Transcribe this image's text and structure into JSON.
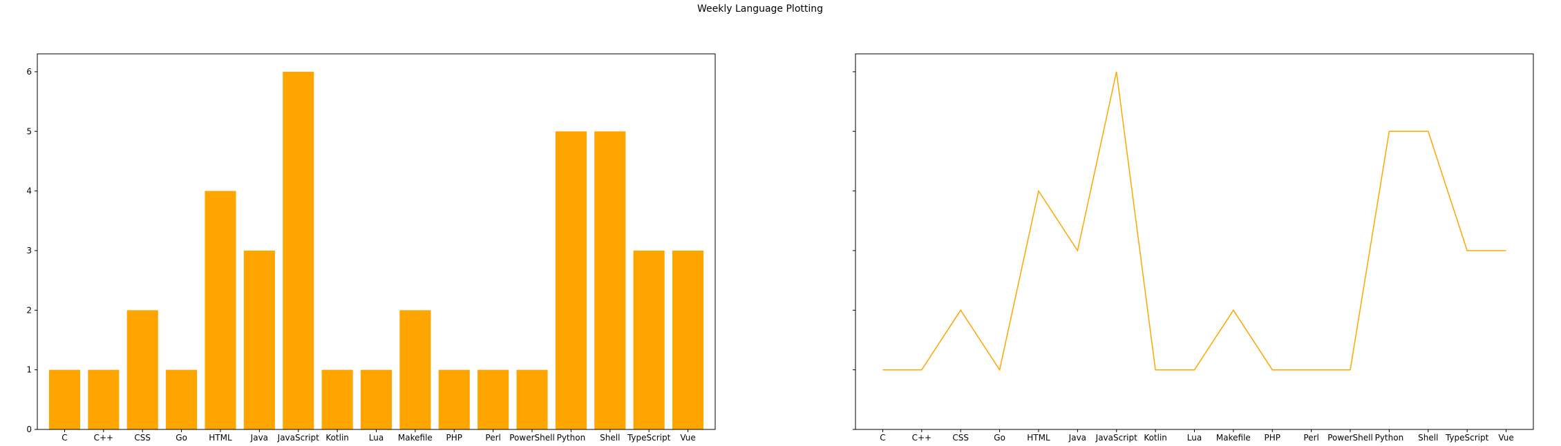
{
  "figure": {
    "title": "Weekly Language Plotting",
    "bar_color": "#ffa500",
    "line_color": "#ffa500"
  },
  "chart_data": [
    {
      "type": "bar",
      "title": "",
      "xlabel": "",
      "ylabel": "",
      "categories": [
        "C",
        "C++",
        "CSS",
        "Go",
        "HTML",
        "Java",
        "JavaScript",
        "Kotlin",
        "Lua",
        "Makefile",
        "PHP",
        "Perl",
        "PowerShell",
        "Python",
        "Shell",
        "TypeScript",
        "Vue"
      ],
      "values": [
        1,
        1,
        2,
        1,
        4,
        3,
        6,
        1,
        1,
        2,
        1,
        1,
        1,
        5,
        5,
        3,
        3
      ],
      "ylim": [
        0,
        6.3
      ],
      "yticks": [
        0,
        1,
        2,
        3,
        4,
        5,
        6
      ],
      "grid": false,
      "legend": "none"
    },
    {
      "type": "line",
      "title": "",
      "xlabel": "",
      "ylabel": "",
      "categories": [
        "C",
        "C++",
        "CSS",
        "Go",
        "HTML",
        "Java",
        "JavaScript",
        "Kotlin",
        "Lua",
        "Makefile",
        "PHP",
        "Perl",
        "PowerShell",
        "Python",
        "Shell",
        "TypeScript",
        "Vue"
      ],
      "values": [
        1,
        1,
        2,
        1,
        4,
        3,
        6,
        1,
        1,
        2,
        1,
        1,
        1,
        5,
        5,
        3,
        3
      ],
      "ylim": [
        0,
        6.3
      ],
      "yticks": [
        0,
        1,
        2,
        3,
        4,
        5,
        6
      ],
      "shared_y": true,
      "grid": false,
      "legend": "none"
    }
  ]
}
